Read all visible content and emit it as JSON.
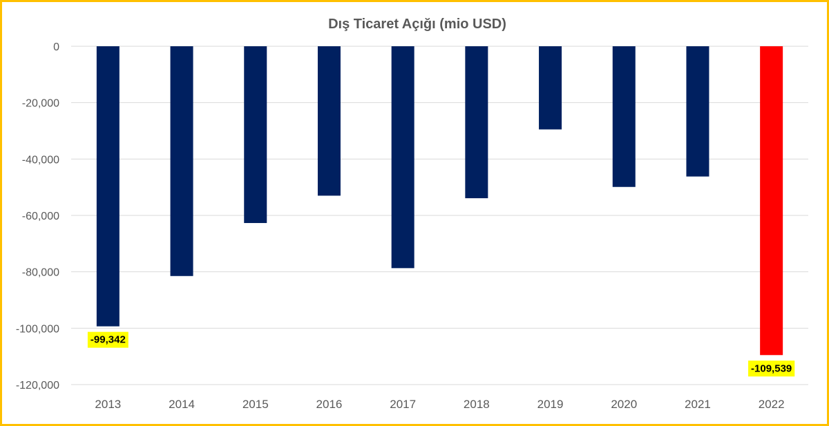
{
  "chart_data": {
    "type": "bar",
    "title": "Dış Ticaret Açığı (mio USD)",
    "xlabel": "",
    "ylabel": "",
    "categories": [
      "2013",
      "2014",
      "2015",
      "2016",
      "2017",
      "2018",
      "2019",
      "2020",
      "2021",
      "2022"
    ],
    "values": [
      -99342,
      -81500,
      -62700,
      -53000,
      -78700,
      -53900,
      -29500,
      -49900,
      -46200,
      -109539
    ],
    "ylim": [
      -120000,
      0
    ],
    "yticks": [
      0,
      -20000,
      -40000,
      -60000,
      -80000,
      -100000,
      -120000
    ],
    "ytick_labels": [
      "0",
      "-20,000",
      "-40,000",
      "-60,000",
      "-80,000",
      "-100,000",
      "-120,000"
    ],
    "grid": true,
    "legend": "none",
    "colors": {
      "default_bar": "#002060",
      "highlight_bar": "#FF0000",
      "data_label_bg": "#FFFF00",
      "frame": "#FFC000",
      "gridline": "#D9D9D9",
      "text": "#595959"
    },
    "highlight_index": 9,
    "data_labels": [
      {
        "index": 0,
        "text": "-99,342"
      },
      {
        "index": 9,
        "text": "-109,539"
      }
    ]
  }
}
